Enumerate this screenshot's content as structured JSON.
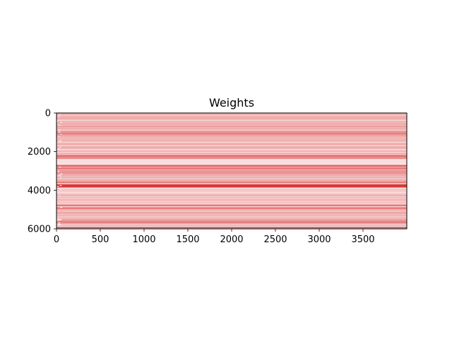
{
  "chart_data": {
    "type": "heatmap",
    "title": "Weights",
    "xlabel": "",
    "ylabel": "",
    "x_ticks": [
      0,
      500,
      1000,
      1500,
      2000,
      2500,
      3000,
      3500
    ],
    "y_ticks": [
      0,
      2000,
      4000,
      6000
    ],
    "x_range": [
      0,
      4000
    ],
    "y_range": [
      0,
      6000
    ],
    "y_inverted": true,
    "grid": false,
    "legend": "none",
    "colormap": "white-to-red",
    "row_band_intensities": [
      {
        "y": 0,
        "v": 0.45
      },
      {
        "y": 250,
        "v": 0.35
      },
      {
        "y": 520,
        "v": 0.3
      },
      {
        "y": 780,
        "v": 0.4
      },
      {
        "y": 1080,
        "v": 0.65
      },
      {
        "y": 1350,
        "v": 0.3
      },
      {
        "y": 1700,
        "v": 0.4
      },
      {
        "y": 2050,
        "v": 0.35
      },
      {
        "y": 2250,
        "v": 0.55
      },
      {
        "y": 2550,
        "v": 0.1
      },
      {
        "y": 2780,
        "v": 0.6
      },
      {
        "y": 3050,
        "v": 0.5
      },
      {
        "y": 3300,
        "v": 0.35
      },
      {
        "y": 3650,
        "v": 0.55
      },
      {
        "y": 3740,
        "v": 0.85
      },
      {
        "y": 3950,
        "v": 0.2
      },
      {
        "y": 4300,
        "v": 0.35
      },
      {
        "y": 4850,
        "v": 0.6
      },
      {
        "y": 5200,
        "v": 0.35
      },
      {
        "y": 5600,
        "v": 0.55
      },
      {
        "y": 5850,
        "v": 0.3
      },
      {
        "y": 5980,
        "v": 0.9
      }
    ]
  },
  "colors": {
    "low": "#ffffff",
    "high": "#cc0000",
    "base": "#f9b5b5"
  }
}
